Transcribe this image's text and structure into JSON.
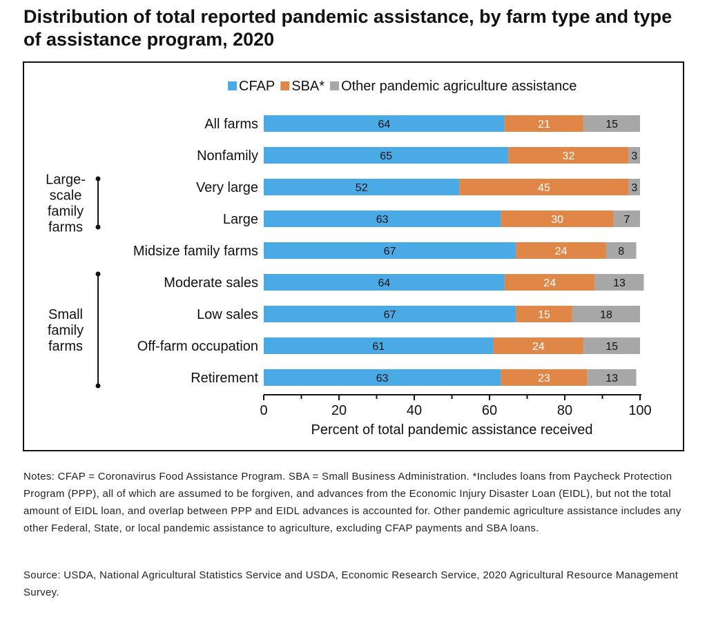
{
  "title": "Distribution of total reported pandemic assistance, by farm type and type of assistance program, 2020",
  "notes": "Notes: CFAP = Coronavirus Food Assistance Program. SBA = Small Business Administration. *Includes loans from Paycheck Protection Program (PPP), all of which are assumed to be forgiven, and advances from the Economic Injury Disaster Loan (EIDL), but not the total amount of EIDL loan, and overlap between PPP and EIDL advances is accounted for. Other pandemic agriculture assistance includes any other Federal, State, or local pandemic assistance to agriculture, excluding CFAP payments and SBA loans.",
  "source": "Source: USDA, National Agricultural Statistics Service and USDA, Economic Research Service, 2020 Agricultural Resource Management Survey.",
  "colors": {
    "cfap": "#4aaae6",
    "sba": "#e08748",
    "other": "#a7a7a7",
    "ink": "#111111"
  },
  "chart_data": {
    "type": "bar",
    "orientation": "horizontal",
    "stacked": true,
    "title": "",
    "xlabel": "Percent of total pandemic assistance received",
    "ylabel": "",
    "xlim": [
      0,
      100
    ],
    "xticks": [
      0,
      20,
      40,
      60,
      80,
      100
    ],
    "legend_position": "top-right",
    "categories": [
      "All farms",
      "Nonfamily",
      "Very large",
      "Large",
      "Midsize family farms",
      "Moderate sales",
      "Low sales",
      "Off-farm occupation",
      "Retirement"
    ],
    "series": [
      {
        "name": "CFAP",
        "color_key": "cfap",
        "values": [
          64,
          65,
          52,
          63,
          67,
          64,
          67,
          61,
          63
        ]
      },
      {
        "name": "SBA*",
        "color_key": "sba",
        "values": [
          21,
          32,
          45,
          30,
          24,
          24,
          15,
          24,
          23
        ]
      },
      {
        "name": "Other pandemic agriculture assistance",
        "color_key": "other",
        "values": [
          15,
          3,
          3,
          7,
          8,
          13,
          18,
          15,
          13
        ]
      }
    ],
    "groups": [
      {
        "label_lines": [
          "Large-",
          "scale",
          "family",
          "farms"
        ],
        "from": "Very large",
        "to": "Large"
      },
      {
        "label_lines": [
          "Small",
          "family",
          "farms"
        ],
        "from": "Moderate sales",
        "to": "Retirement"
      }
    ]
  }
}
